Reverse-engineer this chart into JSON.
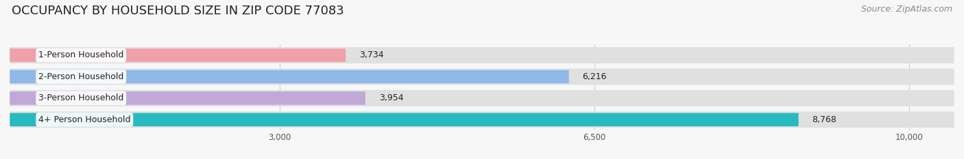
{
  "title": "OCCUPANCY BY HOUSEHOLD SIZE IN ZIP CODE 77083",
  "source": "Source: ZipAtlas.com",
  "categories": [
    "1-Person Household",
    "2-Person Household",
    "3-Person Household",
    "4+ Person Household"
  ],
  "values": [
    3734,
    6216,
    3954,
    8768
  ],
  "bar_colors": [
    "#f0a0a8",
    "#90b8e8",
    "#c0a8d8",
    "#28b8c0"
  ],
  "xlim_min": 0,
  "xlim_max": 10500,
  "xticks": [
    3000,
    6500,
    10000
  ],
  "xticklabels": [
    "3,000",
    "6,500",
    "10,000"
  ],
  "value_labels": [
    "3,734",
    "6,216",
    "3,954",
    "8,768"
  ],
  "title_fontsize": 13,
  "source_fontsize": 9,
  "bar_label_fontsize": 9,
  "value_fontsize": 9,
  "background_color": "#f7f7f7",
  "bar_bg_color": "#e0e0e0",
  "bar_height": 0.62,
  "label_box_color": "#ffffff"
}
